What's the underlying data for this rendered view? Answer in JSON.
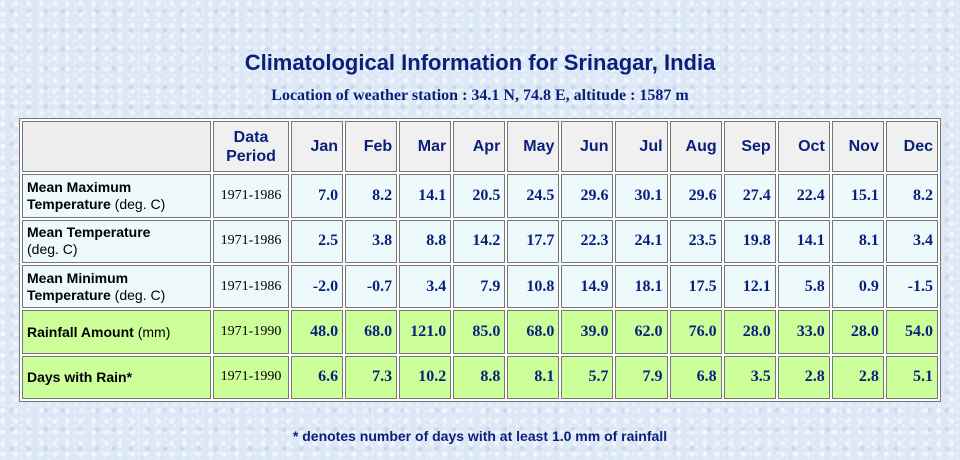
{
  "title": "Climatological Information for Srinagar, India",
  "subtitle": "Location of weather station : 34.1 N, 74.8 E, altitude : 1587 m",
  "header": {
    "data_period_line1": "Data",
    "data_period_line2": "Period",
    "months": [
      "Jan",
      "Feb",
      "Mar",
      "Apr",
      "May",
      "Jun",
      "Jul",
      "Aug",
      "Sep",
      "Oct",
      "Nov",
      "Dec"
    ]
  },
  "rows": [
    {
      "label_bold_1": "Mean Maximum",
      "label_bold_2": "Temperature",
      "label_unit": " (deg. C)",
      "period": "1971-1986",
      "values": [
        "7.0",
        "8.2",
        "14.1",
        "20.5",
        "24.5",
        "29.6",
        "30.1",
        "29.6",
        "27.4",
        "22.4",
        "15.1",
        "8.2"
      ]
    },
    {
      "label_bold_1": "Mean Temperature",
      "label_bold_2": "",
      "label_unit": "(deg. C)",
      "period": "1971-1986",
      "values": [
        "2.5",
        "3.8",
        "8.8",
        "14.2",
        "17.7",
        "22.3",
        "24.1",
        "23.5",
        "19.8",
        "14.1",
        "8.1",
        "3.4"
      ]
    },
    {
      "label_bold_1": "Mean Minimum",
      "label_bold_2": "Temperature",
      "label_unit": " (deg. C)",
      "period": "1971-1986",
      "values": [
        "-2.0",
        "-0.7",
        "3.4",
        "7.9",
        "10.8",
        "14.9",
        "18.1",
        "17.5",
        "12.1",
        "5.8",
        "0.9",
        "-1.5"
      ]
    },
    {
      "label_bold_1": "Rainfall Amount",
      "label_bold_2": "",
      "label_unit": " (mm)",
      "period": "1971-1990",
      "values": [
        "48.0",
        "68.0",
        "121.0",
        "85.0",
        "68.0",
        "39.0",
        "62.0",
        "76.0",
        "28.0",
        "33.0",
        "28.0",
        "54.0"
      ]
    },
    {
      "label_bold_1": "Days with Rain*",
      "label_bold_2": "",
      "label_unit": "",
      "period": "1971-1990",
      "values": [
        "6.6",
        "7.3",
        "10.2",
        "8.8",
        "8.1",
        "5.7",
        "7.9",
        "6.8",
        "3.5",
        "2.8",
        "2.8",
        "5.1"
      ]
    }
  ],
  "footnote": "* denotes number of days with at least 1.0 mm of rainfall",
  "colors": {
    "title": "#0a1f7a",
    "temp_row_bg": "#eef9fb",
    "rain_row_bg": "#ccff99"
  }
}
